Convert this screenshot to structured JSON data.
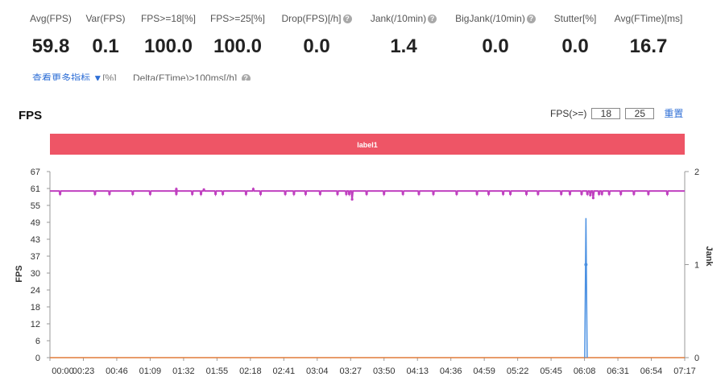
{
  "stats": [
    {
      "label": "Avg(FPS)",
      "value": "59.8",
      "help": false
    },
    {
      "label": "Var(FPS)",
      "value": "0.1",
      "help": false
    },
    {
      "label": "FPS>=18[%]",
      "value": "100.0",
      "help": false
    },
    {
      "label": "FPS>=25[%]",
      "value": "100.0",
      "help": false
    },
    {
      "label": "Drop(FPS)[/h]",
      "value": "0.0",
      "help": true
    },
    {
      "label": "Jank(/10min)",
      "value": "1.4",
      "help": true
    },
    {
      "label": "BigJank(/10min)",
      "value": "0.0",
      "help": true
    },
    {
      "label": "Stutter[%]",
      "value": "0.0",
      "help": false
    },
    {
      "label": "Avg(FTime)[ms]",
      "value": "16.7",
      "help": false
    }
  ],
  "more_link": "查看更多指标 ▼",
  "more_link_cut": "[%]",
  "more_cut_text": "Delta(FTime)>100ms[/h]",
  "help_glyph": "?",
  "fps_filter": {
    "label": "FPS(>=)",
    "v1": "18",
    "v2": "25",
    "reset": "重置"
  },
  "chart_data": {
    "type": "line",
    "title": "FPS",
    "label_band": "label1",
    "ylabel_left": "FPS",
    "ylabel_right": "Jank",
    "y_ticks": [
      "67",
      "61",
      "55",
      "49",
      "43",
      "37",
      "30",
      "24",
      "18",
      "12",
      "6",
      "0"
    ],
    "y_lim": [
      0,
      67
    ],
    "y2_ticks": [
      "2",
      "1",
      "0"
    ],
    "y2_lim": [
      0,
      2
    ],
    "x_ticks": [
      "00:00",
      "00:23",
      "00:46",
      "01:09",
      "01:32",
      "01:55",
      "02:18",
      "02:41",
      "03:04",
      "03:27",
      "03:50",
      "04:13",
      "04:36",
      "04:59",
      "05:22",
      "05:45",
      "06:08",
      "06:31",
      "06:54",
      "07:17"
    ],
    "x_range_sec": [
      0,
      437
    ],
    "series": [
      {
        "name": "FPS",
        "color": "#c040c0",
        "baseline": 60,
        "dips": [
          [
            7,
            59
          ],
          [
            31,
            59
          ],
          [
            41,
            59
          ],
          [
            57,
            59
          ],
          [
            69,
            59
          ],
          [
            87,
            59
          ],
          [
            98,
            59
          ],
          [
            104,
            59
          ],
          [
            106,
            60.5
          ],
          [
            114,
            59
          ],
          [
            119,
            59
          ],
          [
            135,
            59
          ],
          [
            145,
            59
          ],
          [
            162,
            59
          ],
          [
            168,
            59
          ],
          [
            176,
            59
          ],
          [
            186,
            59
          ],
          [
            198,
            59
          ],
          [
            204,
            59
          ],
          [
            206,
            59
          ],
          [
            208,
            57
          ],
          [
            218,
            59
          ],
          [
            230,
            59
          ],
          [
            243,
            59
          ],
          [
            254,
            59
          ],
          [
            264,
            59
          ],
          [
            280,
            59
          ],
          [
            294,
            59
          ],
          [
            302,
            59
          ],
          [
            312,
            59
          ],
          [
            317,
            59
          ],
          [
            328,
            59
          ],
          [
            336,
            59
          ],
          [
            352,
            59
          ],
          [
            358,
            59
          ],
          [
            366,
            59
          ],
          [
            370,
            59
          ],
          [
            372,
            58.5
          ],
          [
            374,
            57.5
          ],
          [
            378,
            59
          ],
          [
            380,
            59
          ],
          [
            385,
            59
          ],
          [
            393,
            59
          ],
          [
            402,
            59
          ],
          [
            412,
            59
          ],
          [
            425,
            59
          ]
        ],
        "bumps": [
          [
            87,
            60.7
          ],
          [
            140,
            60.7
          ]
        ]
      },
      {
        "name": "Jank",
        "color": "#4a90e2",
        "axis": "right",
        "spike_at": 369,
        "spike_value": 1.5,
        "marker_value": 1.0
      },
      {
        "name": "BigJank",
        "color": "#e07b39",
        "axis": "right",
        "values": 0
      }
    ]
  }
}
